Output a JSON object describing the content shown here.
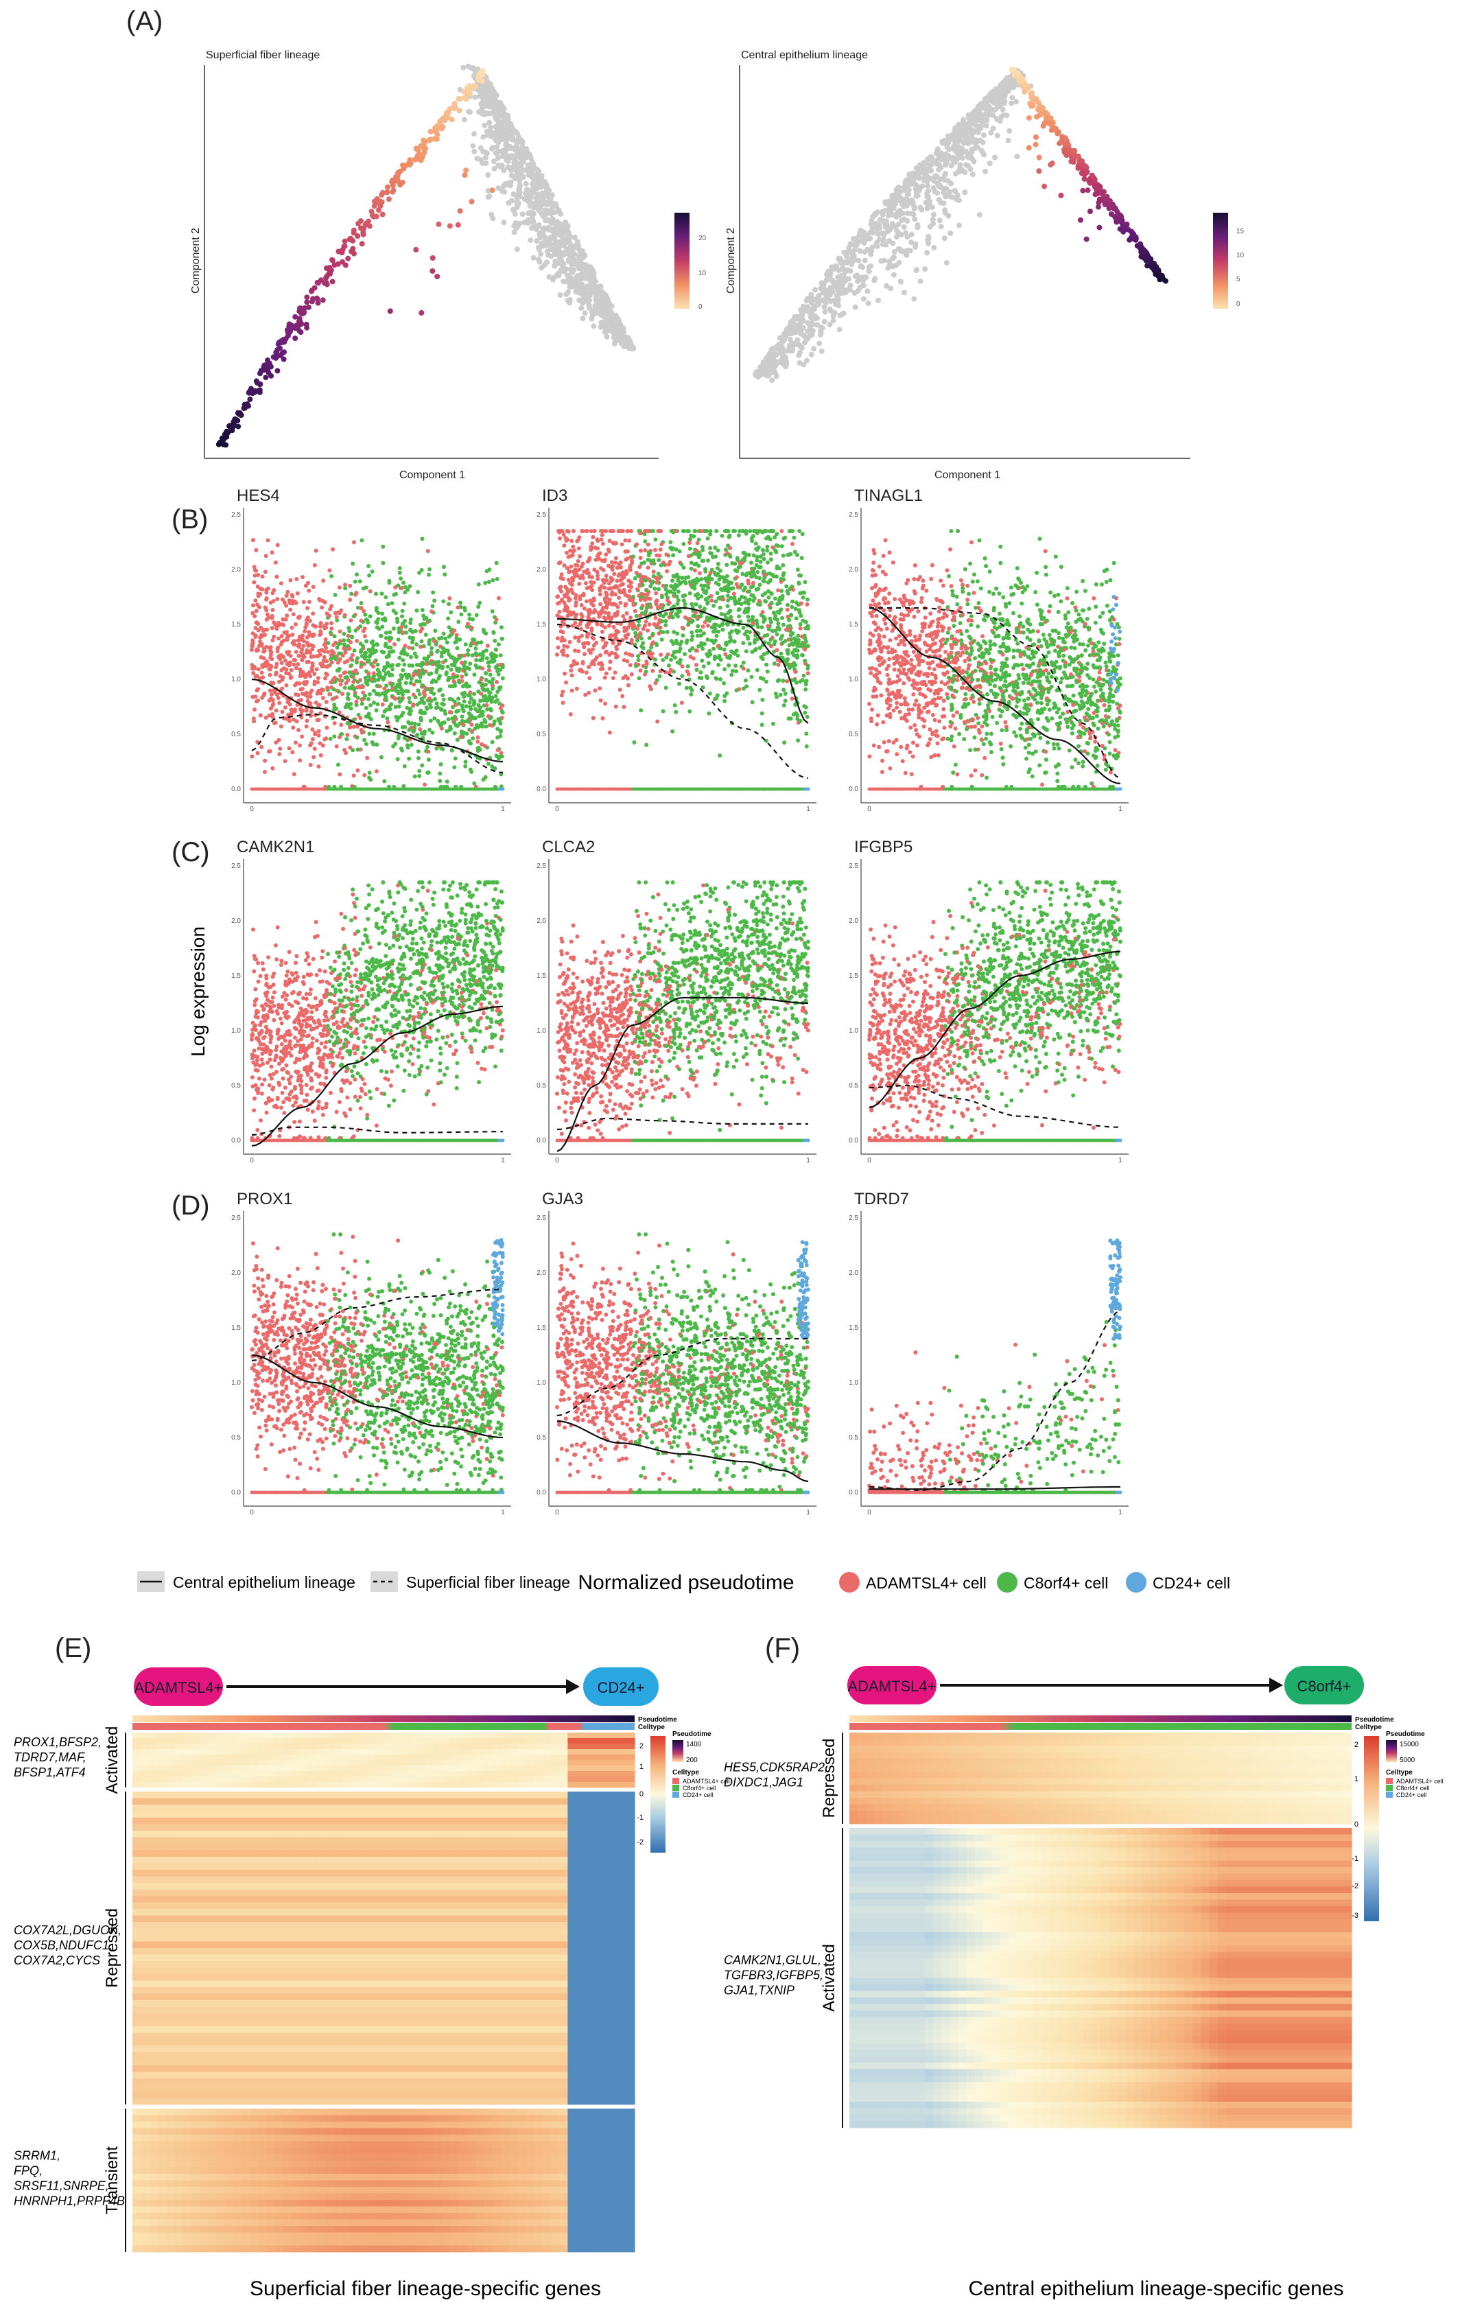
{
  "panels": {
    "A": "(A)",
    "B": "(B)",
    "C": "(C)",
    "D": "(D)",
    "E": "(E)",
    "F": "(F)"
  },
  "chart_data": [
    {
      "type": "scatter",
      "id": "A1",
      "title": "Superficial fiber lineage",
      "xlabel": "Component 1",
      "ylabel": "Component 2",
      "colorbar": {
        "ticks": [
          "20",
          "10",
          "0"
        ],
        "range": [
          0,
          25
        ],
        "colors": [
          "#fce2b0",
          "#f29165",
          "#c23d66",
          "#6a1e7a",
          "#150e36"
        ]
      },
      "highlighted_branch": "left",
      "background_color": "#cccccc"
    },
    {
      "type": "scatter",
      "id": "A2",
      "title": "Central epithelium lineage",
      "xlabel": "Component 1",
      "ylabel": "Component 2",
      "colorbar": {
        "ticks": [
          "15",
          "10",
          "5",
          "0"
        ],
        "range": [
          0,
          18
        ],
        "colors": [
          "#fce2b0",
          "#f29165",
          "#c23d66",
          "#6a1e7a",
          "#150e36"
        ]
      },
      "highlighted_branch": "right",
      "background_color": "#cccccc"
    },
    {
      "type": "scatter",
      "id": "BCD",
      "ylabel": "Log expression",
      "xlabel": "Normalized pseudotime",
      "x_ticks": [
        "0",
        "1"
      ],
      "y_ticks": [
        "0.0",
        "0.5",
        "1.0",
        "1.5",
        "2.0",
        "2.5"
      ],
      "xlim": [
        0,
        1
      ],
      "ylim": [
        0,
        2.5
      ],
      "cell_types": [
        {
          "name": "ADAMTSL4+ cell",
          "color": "#ea6a6a"
        },
        {
          "name": "C8orf4+ cell",
          "color": "#4cb848"
        },
        {
          "name": "CD24+ cell",
          "color": "#5fa8dd"
        }
      ],
      "lineages": [
        {
          "name": "Central epithelium lineage",
          "style": "solid"
        },
        {
          "name": "Superficial fiber lineage",
          "style": "dashed"
        }
      ],
      "genes": [
        {
          "row": "B",
          "name": "HES4",
          "central": [
            [
              0,
              1.0
            ],
            [
              0.25,
              0.74
            ],
            [
              0.5,
              0.55
            ],
            [
              0.75,
              0.4
            ],
            [
              1.0,
              0.25
            ]
          ],
          "superficial": [
            [
              0,
              0.35
            ],
            [
              0.1,
              0.65
            ],
            [
              0.25,
              0.68
            ],
            [
              0.5,
              0.58
            ],
            [
              0.75,
              0.42
            ],
            [
              1.0,
              0.15
            ]
          ],
          "spread": "mid"
        },
        {
          "row": "B",
          "name": "ID3",
          "central": [
            [
              0,
              1.55
            ],
            [
              0.25,
              1.52
            ],
            [
              0.5,
              1.65
            ],
            [
              0.75,
              1.5
            ],
            [
              0.88,
              1.2
            ],
            [
              1.0,
              0.6
            ]
          ],
          "superficial": [
            [
              0,
              1.5
            ],
            [
              0.25,
              1.35
            ],
            [
              0.5,
              1.0
            ],
            [
              0.75,
              0.55
            ],
            [
              1.0,
              0.1
            ]
          ],
          "spread": "high"
        },
        {
          "row": "B",
          "name": "TINAGL1",
          "central": [
            [
              0,
              1.65
            ],
            [
              0.25,
              1.2
            ],
            [
              0.5,
              0.8
            ],
            [
              0.75,
              0.45
            ],
            [
              1.0,
              0.05
            ]
          ],
          "superficial": [
            [
              0,
              1.65
            ],
            [
              0.2,
              1.65
            ],
            [
              0.45,
              1.6
            ],
            [
              0.65,
              1.3
            ],
            [
              0.85,
              0.6
            ],
            [
              1.0,
              0.1
            ]
          ],
          "spread": "mid"
        },
        {
          "row": "C",
          "name": "CAMK2N1",
          "central": [
            [
              0,
              -0.05
            ],
            [
              0.2,
              0.3
            ],
            [
              0.4,
              0.7
            ],
            [
              0.6,
              0.98
            ],
            [
              0.8,
              1.15
            ],
            [
              1.0,
              1.22
            ]
          ],
          "superficial": [
            [
              0,
              0.05
            ],
            [
              0.15,
              0.12
            ],
            [
              0.3,
              0.12
            ],
            [
              0.6,
              0.07
            ],
            [
              1.0,
              0.08
            ]
          ],
          "spread": "low"
        },
        {
          "row": "C",
          "name": "CLCA2",
          "central": [
            [
              0,
              -0.1
            ],
            [
              0.15,
              0.5
            ],
            [
              0.3,
              1.05
            ],
            [
              0.5,
              1.3
            ],
            [
              0.75,
              1.3
            ],
            [
              1.0,
              1.25
            ]
          ],
          "superficial": [
            [
              0,
              0.1
            ],
            [
              0.2,
              0.2
            ],
            [
              0.4,
              0.18
            ],
            [
              0.7,
              0.15
            ],
            [
              1.0,
              0.15
            ]
          ],
          "spread": "low"
        },
        {
          "row": "C",
          "name": "IFGBP5",
          "central": [
            [
              0,
              0.3
            ],
            [
              0.2,
              0.75
            ],
            [
              0.4,
              1.2
            ],
            [
              0.6,
              1.5
            ],
            [
              0.8,
              1.65
            ],
            [
              1.0,
              1.72
            ]
          ],
          "superficial": [
            [
              0,
              0.48
            ],
            [
              0.15,
              0.5
            ],
            [
              0.35,
              0.38
            ],
            [
              0.6,
              0.22
            ],
            [
              1.0,
              0.12
            ]
          ],
          "spread": "low"
        },
        {
          "row": "D",
          "name": "PROX1",
          "central": [
            [
              0,
              1.25
            ],
            [
              0.25,
              1.0
            ],
            [
              0.5,
              0.78
            ],
            [
              0.75,
              0.6
            ],
            [
              1.0,
              0.5
            ]
          ],
          "superficial": [
            [
              0,
              1.2
            ],
            [
              0.2,
              1.45
            ],
            [
              0.4,
              1.68
            ],
            [
              0.65,
              1.78
            ],
            [
              1.0,
              1.85
            ]
          ],
          "spread": "mid"
        },
        {
          "row": "D",
          "name": "GJA3",
          "central": [
            [
              0,
              0.65
            ],
            [
              0.25,
              0.45
            ],
            [
              0.5,
              0.35
            ],
            [
              0.75,
              0.28
            ],
            [
              0.9,
              0.2
            ],
            [
              1.0,
              0.1
            ]
          ],
          "superficial": [
            [
              0,
              0.7
            ],
            [
              0.2,
              0.95
            ],
            [
              0.4,
              1.25
            ],
            [
              0.65,
              1.4
            ],
            [
              1.0,
              1.4
            ]
          ],
          "spread": "mid"
        },
        {
          "row": "D",
          "name": "TDRD7",
          "central": [
            [
              0,
              0.03
            ],
            [
              0.5,
              0.03
            ],
            [
              1.0,
              0.05
            ]
          ],
          "superficial": [
            [
              0,
              0.05
            ],
            [
              0.2,
              0.02
            ],
            [
              0.4,
              0.1
            ],
            [
              0.6,
              0.4
            ],
            [
              0.8,
              1.0
            ],
            [
              1.0,
              1.65
            ]
          ],
          "spread": "sparse"
        }
      ]
    },
    {
      "type": "heatmap",
      "id": "E",
      "title": "Superficial fiber lineage-specific genes",
      "start_label": "ADAMTSL4+",
      "end_label": "CD24+",
      "legend": {
        "pseudotime_title": "Pseudotime",
        "pseudotime_ticks": [
          "1400",
          "200"
        ],
        "celltype_title": "Celltype",
        "celltypes": [
          "ADAMTSL4+ cell",
          "C8orf4+ cell",
          "CD24+ cell"
        ],
        "scale_ticks": [
          "2",
          "1",
          "0",
          "-1",
          "-2"
        ]
      },
      "header_labels": [
        "Pseudotime",
        "Celltype"
      ],
      "groups": [
        {
          "name": "Activated",
          "genes": "PROX1,BFSP2, TDRD7,MAF, BFSP1,ATF4",
          "pattern": "activated"
        },
        {
          "name": "Repressed",
          "genes": "COX7A2L,DGUOK, COX5B,NDUFC1, COX7A2,CYCS",
          "pattern": "repressed"
        },
        {
          "name": "Transient",
          "genes": "SRRM1, FPQ, SRSF11,SNRPE, HNRNPH1,PRPF4B",
          "pattern": "transient"
        }
      ]
    },
    {
      "type": "heatmap",
      "id": "F",
      "title": "Central epithelium lineage-specific genes",
      "start_label": "ADAMTSL4+",
      "end_label": "C8orf4+",
      "legend": {
        "pseudotime_title": "Pseudotime",
        "pseudotime_ticks": [
          "15000",
          "5000"
        ],
        "celltype_title": "Celltype",
        "celltypes": [
          "ADAMTSL4+ cell",
          "C8orf4+ cell",
          "CD24+ cell"
        ],
        "scale_ticks": [
          "2",
          "1",
          "0",
          "-1",
          "-2",
          "-3"
        ]
      },
      "header_labels": [
        "Pseudotime",
        "Celltype"
      ],
      "groups": [
        {
          "name": "Repressed",
          "genes": "HES5,CDK5RAP2, DIXDC1,JAG1",
          "pattern": "repressed"
        },
        {
          "name": "Activated",
          "genes": "CAMK2N1,GLUL, TGFBR3,IGFBP5, GJA1,TXNIP",
          "pattern": "activated"
        }
      ]
    }
  ]
}
